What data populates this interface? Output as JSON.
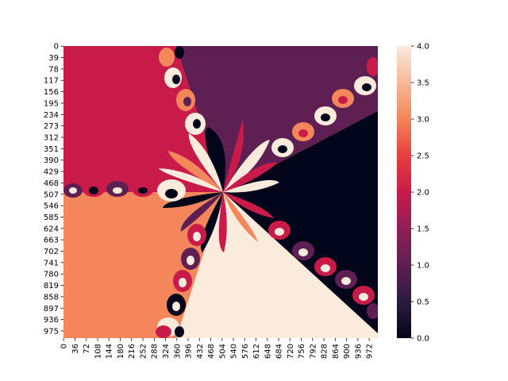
{
  "chart_data": {
    "type": "heatmap",
    "title": "",
    "xlabel": "",
    "ylabel": "",
    "x_ticks": [
      "0",
      "36",
      "72",
      "108",
      "144",
      "180",
      "216",
      "252",
      "288",
      "324",
      "360",
      "396",
      "432",
      "468",
      "504",
      "540",
      "576",
      "612",
      "648",
      "684",
      "720",
      "756",
      "792",
      "828",
      "864",
      "900",
      "936",
      "972"
    ],
    "y_ticks": [
      "0",
      "39",
      "78",
      "117",
      "156",
      "195",
      "234",
      "273",
      "312",
      "351",
      "390",
      "429",
      "468",
      "507",
      "546",
      "585",
      "624",
      "663",
      "702",
      "741",
      "780",
      "819",
      "858",
      "897",
      "936",
      "975"
    ],
    "x_range": [
      0,
      1000
    ],
    "y_range": [
      0,
      1000
    ],
    "value_range": [
      0,
      4
    ],
    "colorbar_ticks": [
      "0.0",
      "0.5",
      "1.0",
      "1.5",
      "2.0",
      "2.5",
      "3.0",
      "3.5",
      "4.0"
    ],
    "colormap": "rocket",
    "center": [
      504,
      507
    ],
    "regions": [
      {
        "region": "upper-left",
        "value": 2.1
      },
      {
        "region": "upper-right",
        "value": 1.0
      },
      {
        "region": "right",
        "value": 0.0
      },
      {
        "region": "lower-right",
        "value": 3.9
      },
      {
        "region": "lower-left",
        "value": 3.0
      }
    ],
    "grid": false,
    "legend": "colorbar-right"
  }
}
